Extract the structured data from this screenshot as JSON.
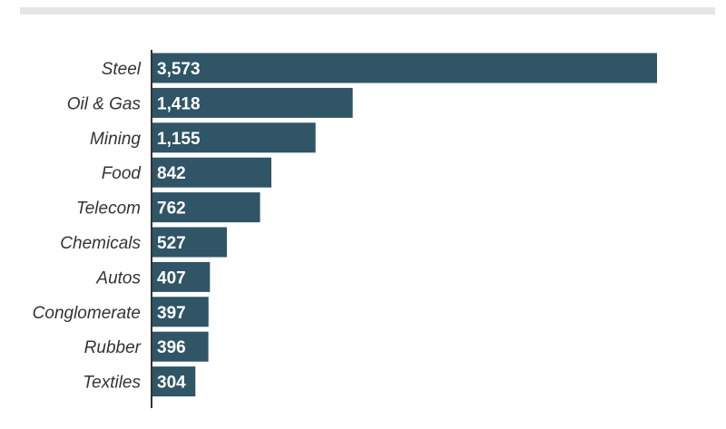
{
  "chart_data": {
    "type": "bar",
    "orientation": "horizontal",
    "categories": [
      "Steel",
      "Oil & Gas",
      "Mining",
      "Food",
      "Telecom",
      "Chemicals",
      "Autos",
      "Conglomerate",
      "Rubber",
      "Textiles"
    ],
    "values": [
      3573,
      1418,
      1155,
      842,
      762,
      527,
      407,
      397,
      396,
      304
    ],
    "value_labels": [
      "3,573",
      "1,418",
      "1,155",
      "842",
      "762",
      "527",
      "407",
      "397",
      "396",
      "304"
    ],
    "title": "",
    "xlabel": "",
    "ylabel": "",
    "xlim": [
      0,
      3573
    ],
    "grid": false,
    "legend": "none",
    "bar_color": "#2f5566"
  }
}
